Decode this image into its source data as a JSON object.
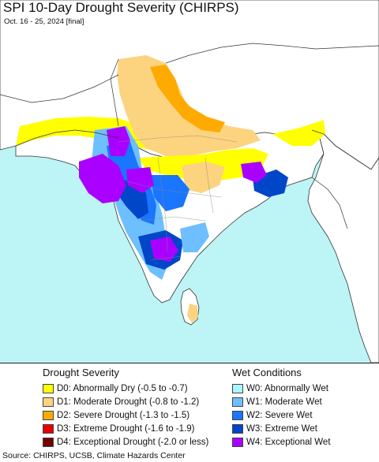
{
  "header": {
    "title": "SPI 10-Day Drought Severity (CHIRPS)",
    "subtitle": "Oct. 16 - 25, 2024 [final]"
  },
  "colors": {
    "ocean": "#bdf4f6",
    "land": "#ffffff",
    "D0": "#ffff00",
    "D1": "#fcd37f",
    "D2": "#ffaa00",
    "D3": "#e60000",
    "D4": "#730000",
    "W0": "#aaf5ff",
    "W1": "#6ebfff",
    "W2": "#1a75ff",
    "W3": "#0046c8",
    "W4": "#aa00ff"
  },
  "legend": {
    "drought": {
      "heading": "Drought Severity",
      "items": [
        {
          "code": "D0",
          "label": "D0: Abnormally Dry (-0.5 to -0.7)",
          "color": "#ffff00"
        },
        {
          "code": "D1",
          "label": "D1: Moderate Drought (-0.8 to -1.2)",
          "color": "#fcd37f"
        },
        {
          "code": "D2",
          "label": "D2: Severe Drought (-1.3 to -1.5)",
          "color": "#ffaa00"
        },
        {
          "code": "D3",
          "label": "D3: Extreme Drought (-1.6 to -1.9)",
          "color": "#e60000"
        },
        {
          "code": "D4",
          "label": "D4: Exceptional Drought (-2.0 or less)",
          "color": "#730000"
        }
      ]
    },
    "wet": {
      "heading": "Wet Conditions",
      "items": [
        {
          "code": "W0",
          "label": "W0: Abnormally Wet",
          "color": "#aaf5ff"
        },
        {
          "code": "W1",
          "label": "W1: Moderate Wet",
          "color": "#6ebfff"
        },
        {
          "code": "W2",
          "label": "W2: Severe Wet",
          "color": "#1a75ff"
        },
        {
          "code": "W3",
          "label": "W3: Extreme Wet",
          "color": "#0046c8"
        },
        {
          "code": "W4",
          "label": "W4: Exceptional Wet",
          "color": "#aa00ff"
        }
      ]
    }
  },
  "footer": {
    "source": "Source: CHIRPS, UCSB, Climate Hazards Center"
  }
}
